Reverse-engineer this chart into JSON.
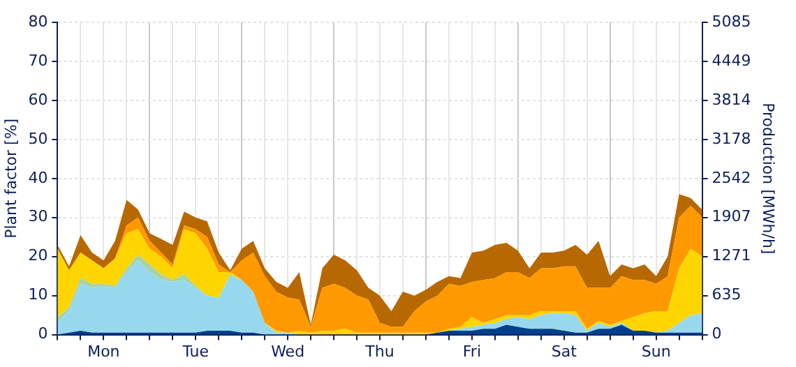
{
  "chart_data": {
    "type": "area",
    "stacked": true,
    "ylabel": "Plant factor [%]",
    "y2label": "Production [MWh/h]",
    "categories": [
      null,
      null,
      null,
      null,
      "Mon",
      null,
      null,
      null,
      null,
      null,
      null,
      null,
      "Tue",
      null,
      null,
      null,
      null,
      null,
      null,
      null,
      "Wed",
      null,
      null,
      null,
      null,
      null,
      null,
      null,
      "Thu",
      null,
      null,
      null,
      null,
      null,
      null,
      null,
      "Fri",
      null,
      null,
      null,
      null,
      null,
      null,
      null,
      "Sat",
      null,
      null,
      null,
      null,
      null,
      null,
      null,
      "Sun",
      null,
      null,
      null,
      null
    ],
    "ylim": [
      0,
      80
    ],
    "yticks": [
      0,
      10,
      20,
      30,
      40,
      50,
      60,
      70,
      80
    ],
    "y2lim": [
      0,
      5085
    ],
    "y2ticks": [
      0,
      635,
      1271,
      1907,
      2542,
      3178,
      3814,
      4449,
      5085
    ],
    "grid": true,
    "legend": false,
    "series": [
      {
        "color": "#003f8a",
        "values": [
          0,
          0.5,
          1,
          0.5,
          0.5,
          0.5,
          0.5,
          0.5,
          0.5,
          0.5,
          0.5,
          0.5,
          0.5,
          1,
          1,
          1,
          0.5,
          0.5,
          0,
          0,
          0,
          0,
          0,
          0,
          0,
          0,
          0,
          0,
          0,
          0,
          0,
          0,
          0,
          0.5,
          1,
          1,
          1,
          1.5,
          1.5,
          2.5,
          2,
          1.5,
          1.5,
          1.5,
          1,
          0.5,
          0.5,
          1.5,
          1.5,
          2.5,
          1,
          1,
          0.5,
          0.5,
          0.5,
          0.5,
          0.5
        ]
      },
      {
        "color": "#97d8ef",
        "values": [
          3,
          5.5,
          12,
          11.5,
          12,
          11.5,
          15.5,
          18.5,
          15.5,
          13.5,
          13,
          13.5,
          11.5,
          9,
          8.5,
          14,
          13.5,
          10.5,
          3,
          0.5,
          0.5,
          0,
          0,
          0,
          0,
          0,
          0,
          0,
          0,
          0,
          0,
          0,
          0,
          0,
          0,
          0.5,
          1,
          1,
          1.5,
          1.5,
          2.5,
          2.5,
          3.5,
          4,
          4.5,
          4.5,
          0.5,
          1.5,
          0.5,
          0.5,
          0,
          0,
          0,
          0.5,
          2.5,
          4.5,
          5
        ]
      },
      {
        "color": "#a8d3a8",
        "values": [
          1.5,
          1,
          1.5,
          1,
          0.5,
          0.5,
          1,
          1.5,
          2,
          1.5,
          0.5,
          1.5,
          0.5,
          0,
          0,
          0.5,
          0,
          0,
          0,
          0,
          0,
          0,
          0,
          0,
          0,
          0,
          0,
          0,
          0,
          0,
          0,
          0,
          0,
          0,
          0,
          0,
          0,
          0,
          0,
          0,
          0,
          0,
          0,
          0,
          0,
          0,
          0,
          0,
          0,
          0,
          0,
          0,
          0,
          0,
          0,
          0,
          0
        ]
      },
      {
        "color": "#ffd500",
        "values": [
          17.5,
          9.5,
          6.5,
          6,
          4,
          7,
          9,
          6.5,
          4,
          4.5,
          3,
          11.5,
          13.5,
          12,
          6.5,
          0.5,
          0,
          0,
          0,
          0.5,
          0,
          1,
          0.5,
          1,
          1,
          1.5,
          0.5,
          0.5,
          0.5,
          0.5,
          0.5,
          0.5,
          0.5,
          0,
          0.5,
          0.5,
          2.5,
          0.5,
          1,
          1,
          0.5,
          1,
          1,
          0.5,
          0.5,
          1,
          0.5,
          0.5,
          0.5,
          0.5,
          3.5,
          4.5,
          5.5,
          5,
          14,
          17,
          14.5
        ]
      },
      {
        "color": "#ff9900",
        "values": [
          0,
          0,
          0,
          0,
          0,
          0,
          2,
          3,
          2,
          1,
          1,
          1,
          1,
          3,
          2,
          0,
          5,
          10,
          12,
          10,
          9,
          8,
          1.5,
          11,
          12,
          10.5,
          9.5,
          8.5,
          2.5,
          1.5,
          1.5,
          5.5,
          8,
          9.5,
          11.5,
          10.5,
          9,
          11,
          10.5,
          11,
          11,
          9.5,
          11,
          11,
          11.5,
          11.5,
          10.5,
          8.5,
          9.5,
          11.5,
          9.5,
          8.5,
          7,
          9,
          13,
          11,
          10
        ]
      },
      {
        "color": "#b86800",
        "values": [
          1,
          1,
          4.5,
          2,
          2,
          4.5,
          6.5,
          2,
          2,
          3.5,
          5,
          3.5,
          3,
          4,
          3,
          0.5,
          3,
          3,
          2,
          2.5,
          2.5,
          7,
          0.5,
          5,
          7.5,
          7,
          6.5,
          3,
          7,
          4,
          9,
          4,
          3,
          3.5,
          2,
          2,
          7.5,
          7.5,
          8.5,
          7.5,
          5.5,
          2.5,
          4,
          4,
          4,
          5.5,
          8.5,
          12,
          3,
          3,
          3,
          4,
          2,
          5,
          6,
          2,
          2
        ]
      }
    ]
  }
}
